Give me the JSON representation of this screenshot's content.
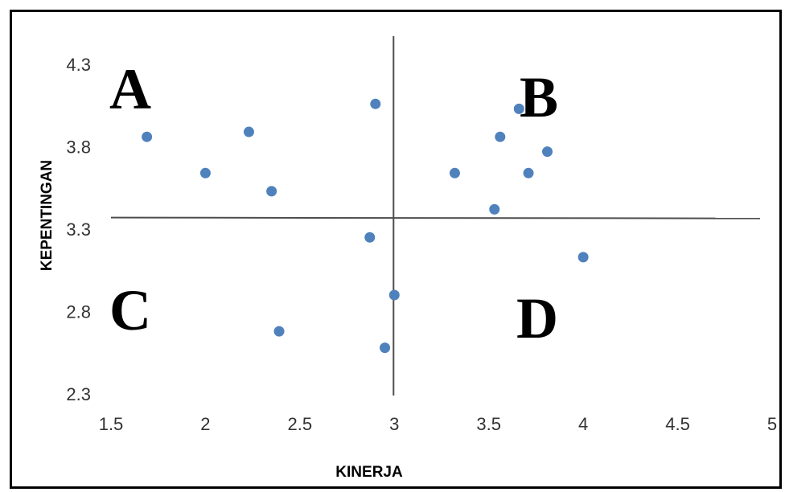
{
  "chart_data": {
    "type": "scatter",
    "title": "",
    "xlabel": "KINERJA",
    "ylabel": "KEPENTINGAN",
    "xlim": [
      1.5,
      5
    ],
    "ylim": [
      2.3,
      4.5
    ],
    "x_ticks": [
      "1.5",
      "2",
      "2.5",
      "3",
      "3.5",
      "4",
      "4.5",
      "5"
    ],
    "y_ticks": [
      "2.3",
      "2.8",
      "3.3",
      "3.8",
      "4.3"
    ],
    "grid": false,
    "legend": "none",
    "marker_color": "#4F81BD",
    "reference_lines": {
      "x": 3.0,
      "y": 3.37
    },
    "quadrant_labels": [
      "A",
      "B",
      "C",
      "D"
    ],
    "points": [
      {
        "x": 1.69,
        "y": 3.86
      },
      {
        "x": 2.0,
        "y": 3.64
      },
      {
        "x": 2.23,
        "y": 3.89
      },
      {
        "x": 2.35,
        "y": 3.53
      },
      {
        "x": 2.39,
        "y": 2.68
      },
      {
        "x": 2.87,
        "y": 3.25
      },
      {
        "x": 2.9,
        "y": 4.06
      },
      {
        "x": 2.95,
        "y": 2.58
      },
      {
        "x": 3.0,
        "y": 2.9
      },
      {
        "x": 3.32,
        "y": 3.64
      },
      {
        "x": 3.53,
        "y": 3.42
      },
      {
        "x": 3.56,
        "y": 3.86
      },
      {
        "x": 3.66,
        "y": 4.03
      },
      {
        "x": 3.71,
        "y": 3.64
      },
      {
        "x": 3.81,
        "y": 3.77
      },
      {
        "x": 4.0,
        "y": 3.13
      }
    ]
  }
}
